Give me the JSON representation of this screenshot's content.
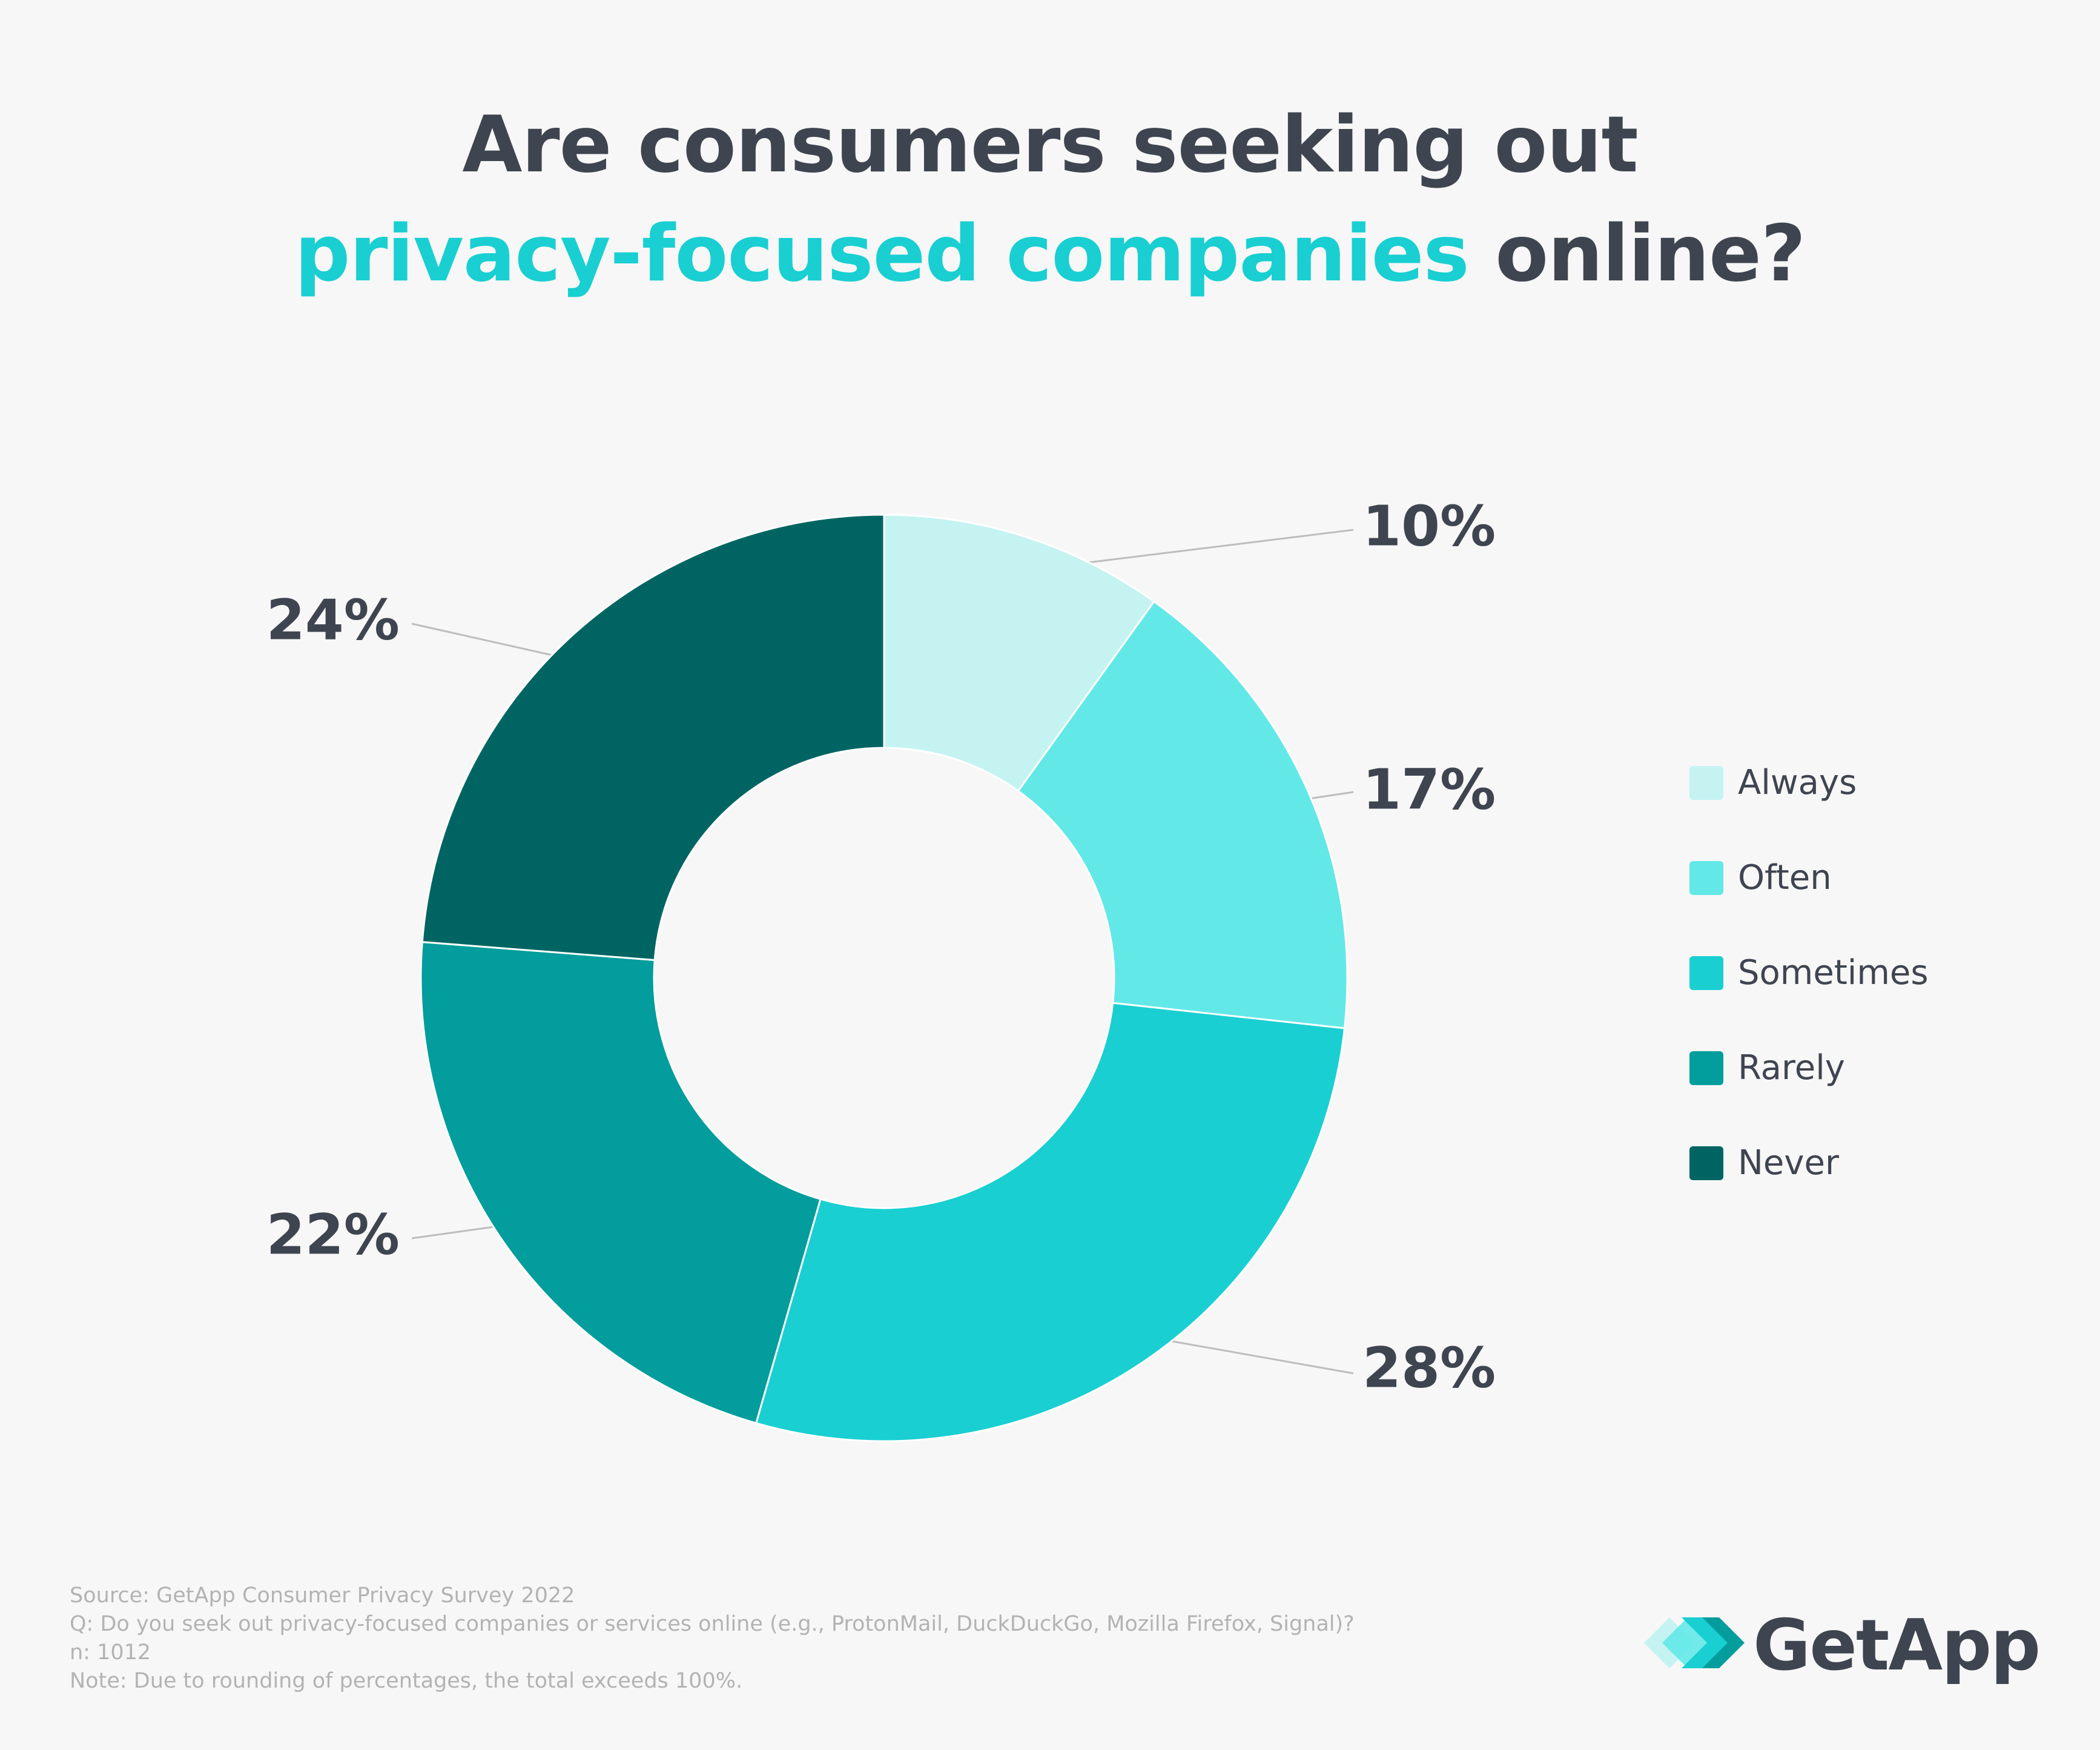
{
  "title": {
    "line1": "Are consumers seeking out",
    "line2_accent": "privacy-focused companies",
    "line2_rest": " online?"
  },
  "colors": {
    "accent": "#19cfd2",
    "text": "#3f4550",
    "background": "#f7f7f7",
    "footnote": "#b3b3b3"
  },
  "chart_data": {
    "type": "pie",
    "donut": true,
    "categories": [
      "Always",
      "Often",
      "Sometimes",
      "Rarely",
      "Never"
    ],
    "values": [
      10,
      17,
      28,
      22,
      24
    ],
    "labels": [
      "10%",
      "17%",
      "28%",
      "22%",
      "24%"
    ],
    "colors": [
      "#c4f3f2",
      "#63e8e8",
      "#19cfd2",
      "#029d9c",
      "#006562"
    ],
    "legend_position": "right",
    "unit": "%"
  },
  "footnotes": {
    "source": "Source: GetApp Consumer Privacy Survey 2022",
    "question": "Q: Do you seek out privacy-focused companies or services online (e.g., ProtonMail, DuckDuckGo, Mozilla Firefox, Signal)?",
    "n": "n: 1012",
    "note": "Note: Due to rounding of percentages, the total exceeds 100%."
  },
  "logo": {
    "text": "GetApp",
    "icon": "getapp-chevron-logo"
  }
}
